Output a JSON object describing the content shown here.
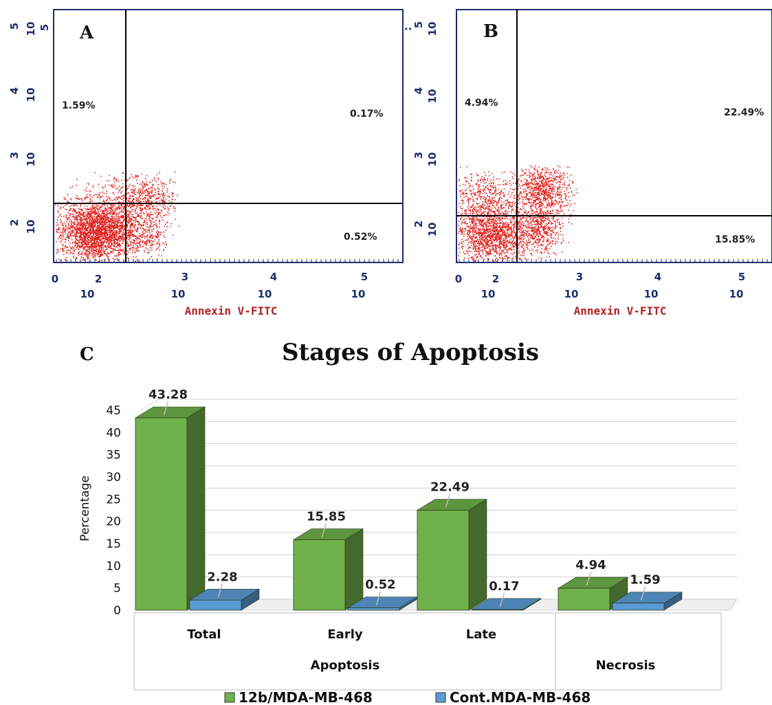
{
  "panels": [
    {
      "letter": "A",
      "xlabel": "Annexin V-FITC",
      "x_ticks": [
        {
          "exp": "0",
          "base": ""
        },
        {
          "exp": "2",
          "base": "10"
        },
        {
          "exp": "3",
          "base": "10"
        },
        {
          "exp": "4",
          "base": "10"
        },
        {
          "exp": "5",
          "base": "10"
        }
      ],
      "y_ticks": [
        {
          "exp": "2",
          "base": "10"
        },
        {
          "exp": "3",
          "base": "10"
        },
        {
          "exp": "4",
          "base": "10"
        },
        {
          "exp": "5",
          "base": "10"
        }
      ],
      "y_extra_mark": "5",
      "quadrants": {
        "upper_left": "1.59%",
        "upper_right": "0.17%",
        "lower_right": "0.52%"
      }
    },
    {
      "letter": "B",
      "xlabel": "Annexin V-FITC",
      "x_ticks": [
        {
          "exp": "0",
          "base": ""
        },
        {
          "exp": "2",
          "base": "10"
        },
        {
          "exp": "3",
          "base": "10"
        },
        {
          "exp": "4",
          "base": "10"
        },
        {
          "exp": "5",
          "base": "10"
        }
      ],
      "y_ticks": [
        {
          "exp": "2",
          "base": "10"
        },
        {
          "exp": "3",
          "base": "10"
        },
        {
          "exp": "4",
          "base": "10"
        },
        {
          "exp": "5",
          "base": "10"
        }
      ],
      "y_extra_mark": ":",
      "quadrants": {
        "upper_left": "4.94%",
        "upper_right": "22.49%",
        "lower_right": "15.85%"
      }
    }
  ],
  "panel_c_letter": "C",
  "chart_data": {
    "type": "bar",
    "title": "Stages of Apoptosis",
    "ylabel": "Percentage",
    "xlabel": "",
    "ylim": [
      0,
      45
    ],
    "y_ticks": [
      "0",
      "5",
      "10",
      "15",
      "20",
      "25",
      "30",
      "35",
      "40",
      "45"
    ],
    "categories": [
      "Total",
      "Early",
      "Late",
      "Necrosis"
    ],
    "category_groups": [
      {
        "label": "Apoptosis",
        "span": [
          "Total",
          "Early",
          "Late"
        ]
      },
      {
        "label": "Necrosis",
        "span": [
          "Necrosis"
        ]
      }
    ],
    "series": [
      {
        "name": "12b/MDA-MB-468",
        "color": "#6fb14a",
        "values": [
          43.28,
          15.85,
          22.49,
          4.94
        ],
        "labels": [
          "43.28",
          "15.85",
          "22.49",
          "4.94"
        ]
      },
      {
        "name": "Cont.MDA-MB-468",
        "color": "#5b9bd5",
        "values": [
          2.28,
          0.52,
          0.17,
          1.59
        ],
        "labels": [
          "2.28",
          "0.52",
          "0.17",
          "1.59"
        ]
      }
    ],
    "legend_position": "bottom",
    "grid": true
  }
}
